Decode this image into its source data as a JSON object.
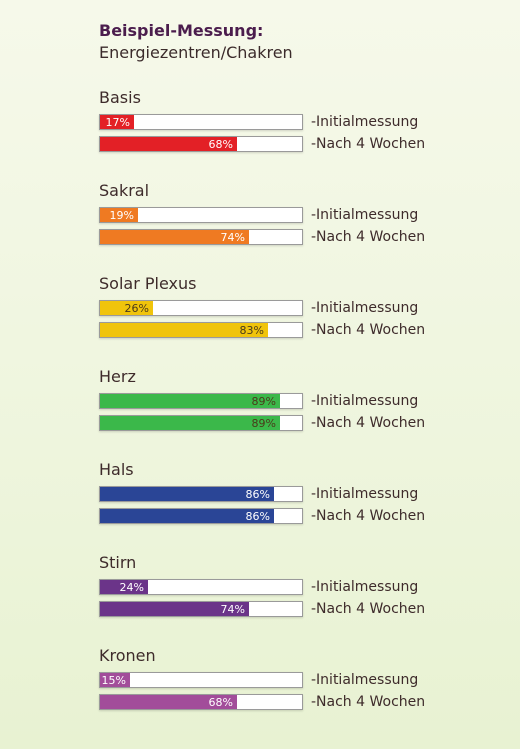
{
  "header": {
    "title": "Beispiel-Messung:",
    "subtitle": "Energiezentren/Chakren"
  },
  "chart_data": {
    "type": "bar",
    "orientation": "horizontal",
    "ylim": [
      0,
      100
    ],
    "series_labels": [
      "-Initialmessung",
      "-Nach 4 Wochen"
    ],
    "groups": [
      {
        "name": "Basis",
        "color": "#e32026",
        "values": [
          17,
          68
        ],
        "labels": [
          "17%",
          "68%"
        ]
      },
      {
        "name": "Sakral",
        "color": "#ef7a22",
        "values": [
          19,
          74
        ],
        "labels": [
          "19%",
          "74%"
        ]
      },
      {
        "name": "Solar Plexus",
        "color": "#f0c40b",
        "values": [
          26,
          83
        ],
        "labels": [
          "26%",
          "83%"
        ],
        "dark_text": true
      },
      {
        "name": "Herz",
        "color": "#3bb84a",
        "values": [
          89,
          89
        ],
        "labels": [
          "89%",
          "89%"
        ],
        "dark_text": true
      },
      {
        "name": "Hals",
        "color": "#2a4596",
        "values": [
          86,
          86
        ],
        "labels": [
          "86%",
          "86%"
        ]
      },
      {
        "name": "Stirn",
        "color": "#6b3489",
        "values": [
          24,
          74
        ],
        "labels": [
          "24%",
          "74%"
        ]
      },
      {
        "name": "Kronen",
        "color": "#a24d9a",
        "values": [
          15,
          68
        ],
        "labels": [
          "15%",
          "68%"
        ]
      }
    ]
  }
}
